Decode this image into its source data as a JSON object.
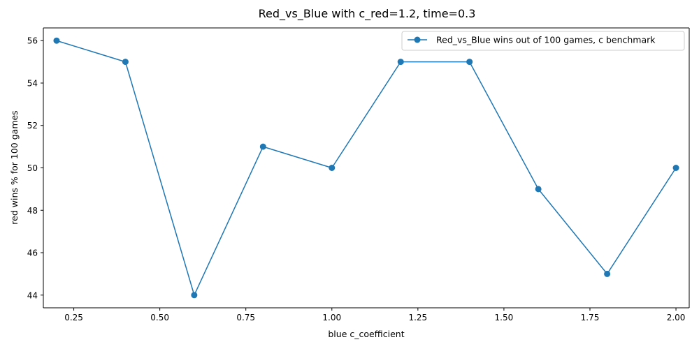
{
  "chart_data": {
    "type": "line",
    "title": "Red_vs_Blue with c_red=1.2, time=0.3",
    "xlabel": "blue c_coefficient",
    "ylabel": "red wins % for 100 games",
    "xlim": [
      0.1615,
      2.0385
    ],
    "ylim": [
      43.4,
      56.6
    ],
    "xticks": [
      0.25,
      0.5,
      0.75,
      1.0,
      1.25,
      1.5,
      1.75,
      2.0
    ],
    "xtick_labels": [
      "0.25",
      "0.50",
      "0.75",
      "1.00",
      "1.25",
      "1.50",
      "1.75",
      "2.00"
    ],
    "yticks": [
      44,
      46,
      48,
      50,
      52,
      54,
      56
    ],
    "ytick_labels": [
      "44",
      "46",
      "48",
      "50",
      "52",
      "54",
      "56"
    ],
    "grid": false,
    "legend_position": "top-right",
    "series": [
      {
        "name": "Red_vs_Blue wins out of 100 games, c benchmark",
        "color": "#1f77b4",
        "marker": "circle",
        "x": [
          0.2,
          0.4,
          0.6,
          0.8,
          1.0,
          1.2,
          1.4,
          1.6,
          1.8,
          2.0
        ],
        "y": [
          56,
          55,
          44,
          51,
          50,
          55,
          55,
          49,
          45,
          50
        ]
      }
    ]
  }
}
